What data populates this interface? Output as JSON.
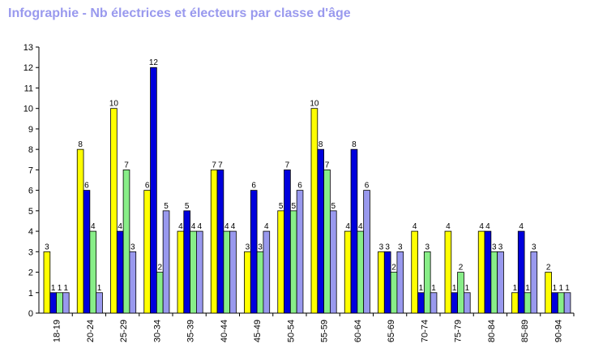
{
  "chart_data": {
    "type": "bar",
    "title": "Infographie - Nb électrices et électeurs par classe d'âge",
    "xlabel": "",
    "ylabel": "",
    "ylim": [
      0,
      13
    ],
    "yticks": [
      0,
      1,
      2,
      3,
      4,
      5,
      6,
      7,
      8,
      9,
      10,
      11,
      12,
      13
    ],
    "grid": false,
    "legend": "none",
    "categories": [
      "18-19",
      "20-24",
      "25-29",
      "30-34",
      "35-39",
      "40-44",
      "45-49",
      "50-54",
      "55-59",
      "60-64",
      "65-69",
      "70-74",
      "75-79",
      "80-84",
      "85-89",
      "90-94"
    ],
    "series": [
      {
        "color": "#ffff00",
        "values": [
          3,
          8,
          10,
          6,
          4,
          7,
          3,
          5,
          10,
          4,
          3,
          4,
          4,
          4,
          1,
          2
        ]
      },
      {
        "color": "#0000dd",
        "values": [
          1,
          6,
          4,
          12,
          5,
          7,
          6,
          7,
          8,
          8,
          3,
          1,
          1,
          4,
          4,
          1
        ]
      },
      {
        "color": "#88ee88",
        "values": [
          1,
          4,
          7,
          2,
          4,
          4,
          3,
          5,
          7,
          4,
          2,
          3,
          2,
          3,
          1,
          1
        ]
      },
      {
        "color": "#9999ee",
        "values": [
          1,
          1,
          3,
          5,
          4,
          4,
          4,
          6,
          5,
          6,
          3,
          1,
          1,
          3,
          3,
          1
        ]
      }
    ]
  }
}
